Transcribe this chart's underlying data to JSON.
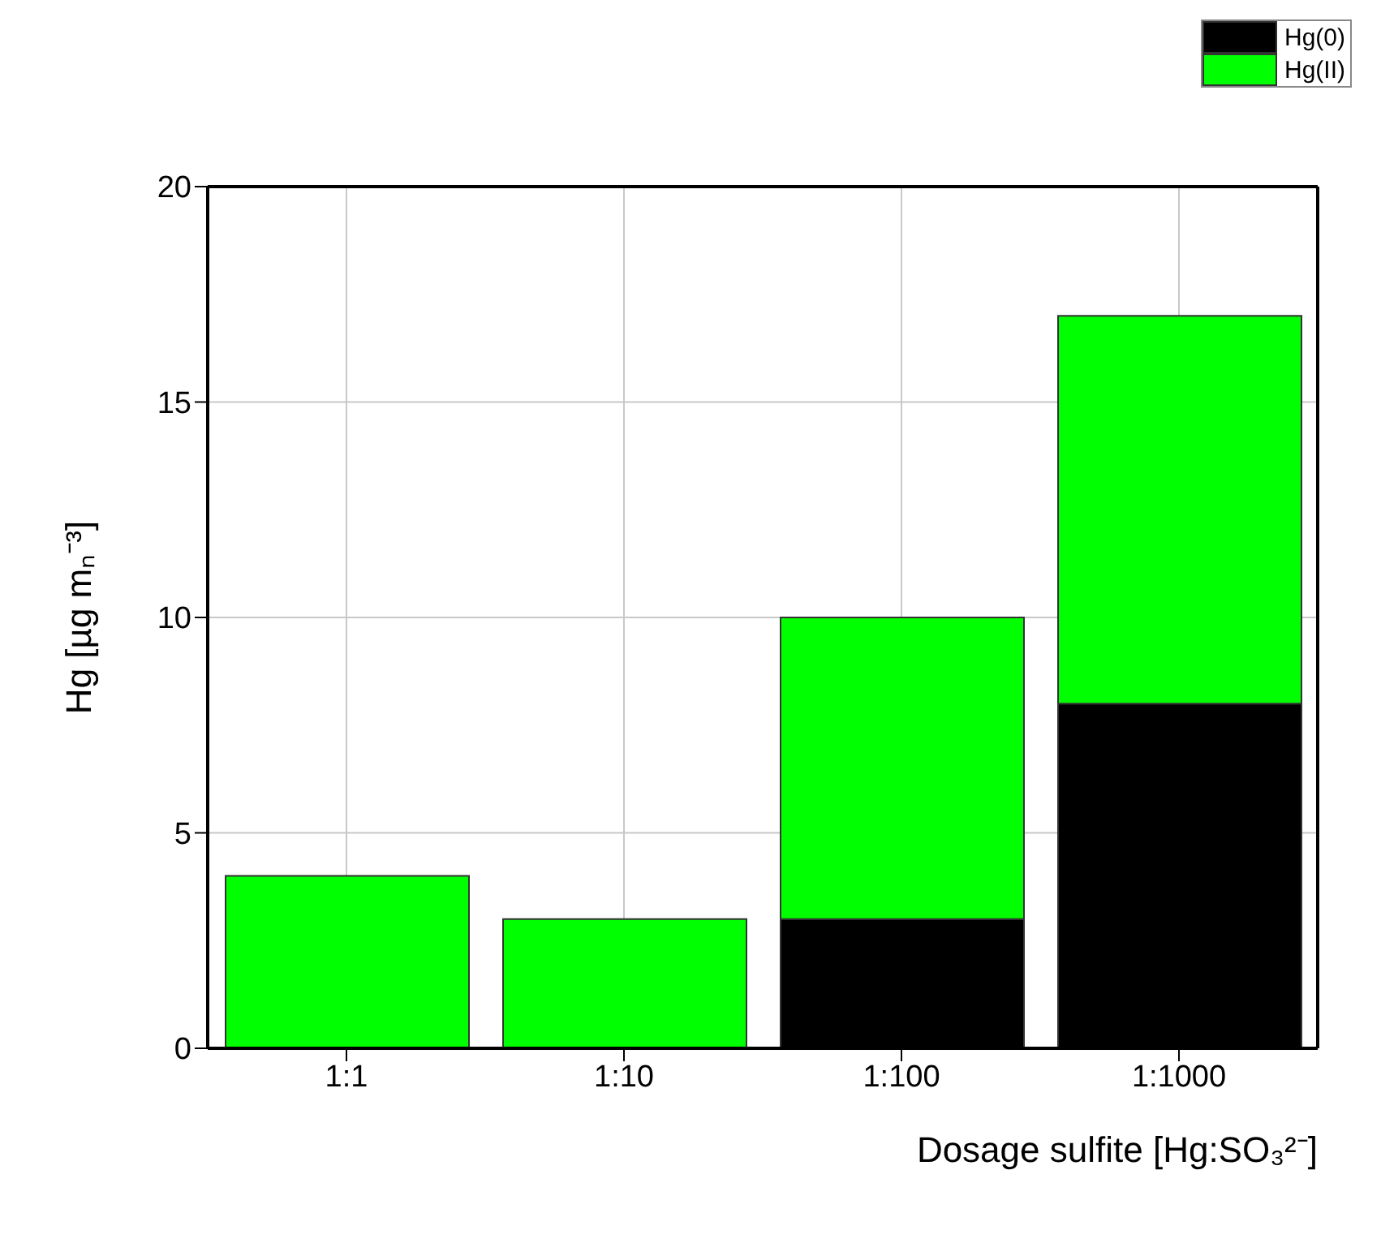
{
  "chart_data": {
    "type": "bar",
    "stacked": true,
    "xlabel": "Dosage sulfite [Hg:SO₃²⁻]",
    "ylabel": "Hg [µg mₙ⁻³]",
    "categories": [
      "1:1",
      "1:10",
      "1:100",
      "1:1000"
    ],
    "series": [
      {
        "name": "Hg(0)",
        "color": "#000000",
        "values": [
          0,
          0,
          3,
          8
        ]
      },
      {
        "name": "Hg(II)",
        "color": "#00ff00",
        "values": [
          4,
          3,
          7,
          9
        ]
      }
    ],
    "ylim": [
      0,
      20
    ],
    "yticks": [
      0,
      5,
      10,
      15,
      20
    ],
    "grid": true,
    "legend": "top right"
  }
}
